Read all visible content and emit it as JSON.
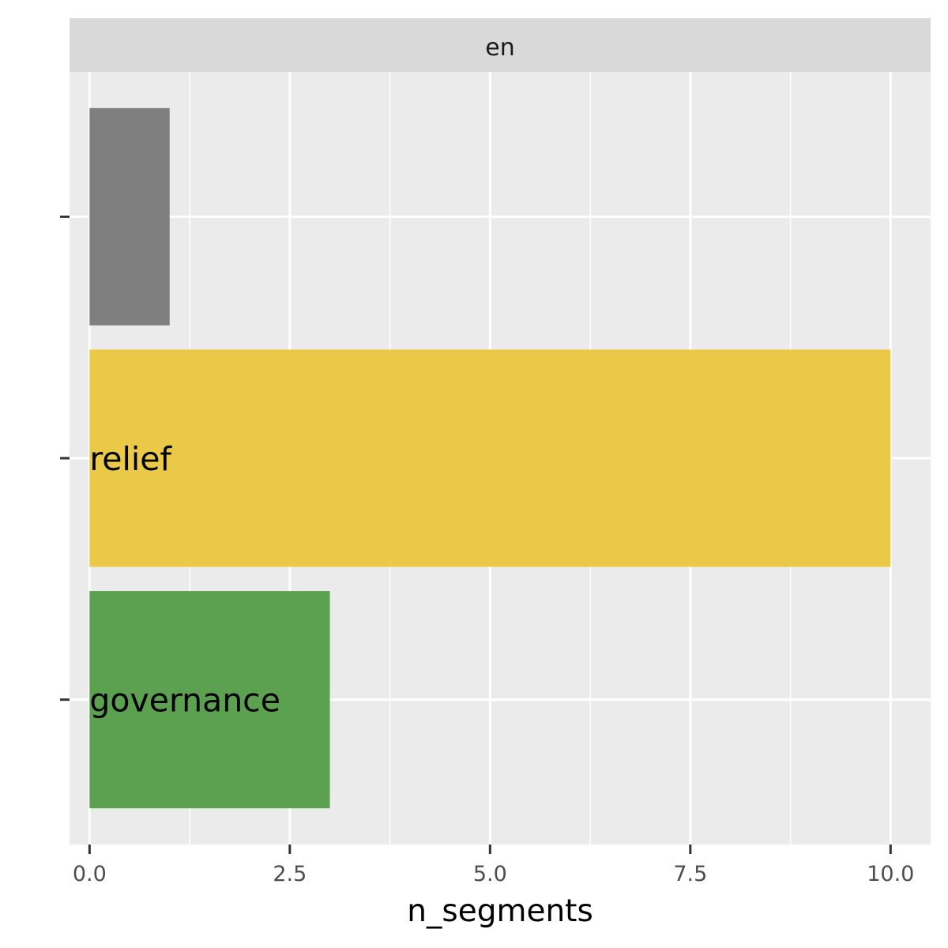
{
  "chart_data": {
    "type": "bar",
    "orientation": "horizontal",
    "facet": "en",
    "xlabel": "n_segments",
    "ylabel": "",
    "xlim": [
      -0.25,
      10.5
    ],
    "x_ticks": [
      0.0,
      2.5,
      5.0,
      7.5,
      10.0
    ],
    "x_tick_labels": [
      "0.0",
      "2.5",
      "5.0",
      "7.5",
      "10.0"
    ],
    "grid": true,
    "legend": "none",
    "bars": [
      {
        "label": "",
        "value": 1,
        "color": "#7f7f7f"
      },
      {
        "label": "relief",
        "value": 10,
        "color": "#ebc948"
      },
      {
        "label": "governance",
        "value": 3,
        "color": "#5ba150"
      }
    ]
  }
}
